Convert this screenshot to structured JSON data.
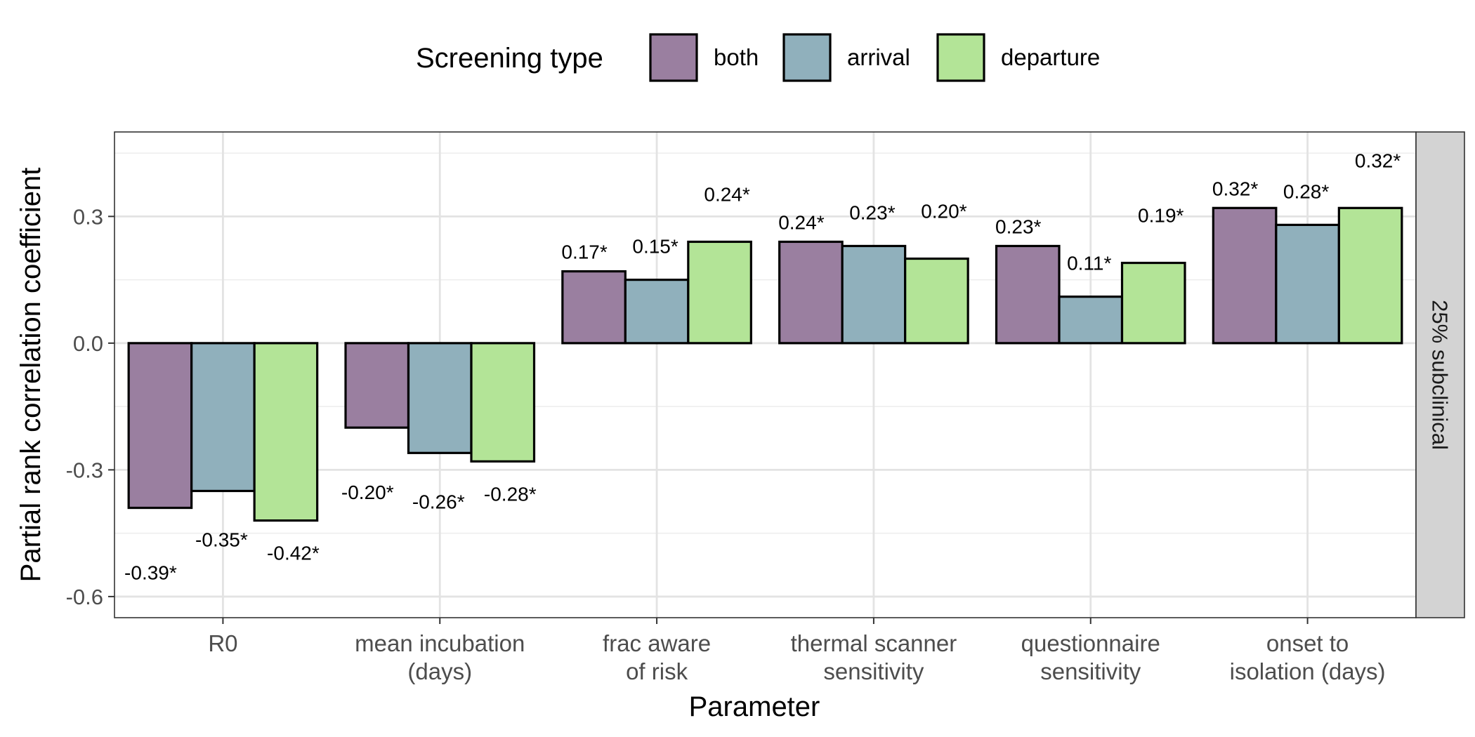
{
  "chart_data": {
    "type": "bar",
    "title": "",
    "xlabel": "Parameter",
    "ylabel": "Partial rank correlation coefficient",
    "ylim": [
      -0.65,
      0.5
    ],
    "yticks": [
      -0.6,
      -0.3,
      0.0,
      0.3
    ],
    "ytick_labels": [
      "-0.6",
      "-0.3",
      "0.0",
      "0.3"
    ],
    "grid": true,
    "legend": {
      "title": "Screening type",
      "position": "top",
      "entries": [
        "both",
        "arrival",
        "departure"
      ]
    },
    "facet_label": "25% subclinical",
    "categories": [
      [
        "R0"
      ],
      [
        "mean incubation",
        "(days)"
      ],
      [
        "frac aware",
        "of risk"
      ],
      [
        "thermal scanner",
        "sensitivity"
      ],
      [
        "questionnaire",
        "sensitivity"
      ],
      [
        "onset to",
        "isolation (days)"
      ]
    ],
    "series": [
      {
        "name": "both",
        "color": "#9a7fa0",
        "values": [
          -0.39,
          -0.2,
          0.17,
          0.24,
          0.23,
          0.32
        ],
        "labels": [
          "-0.39*",
          "-0.20*",
          "0.17*",
          "0.24*",
          "0.23*",
          "0.32*"
        ]
      },
      {
        "name": "arrival",
        "color": "#90b0bc",
        "values": [
          -0.35,
          -0.26,
          0.15,
          0.23,
          0.11,
          0.28
        ],
        "labels": [
          "-0.35*",
          "-0.26*",
          "0.15*",
          "0.23*",
          "0.11*",
          "0.28*"
        ]
      },
      {
        "name": "departure",
        "color": "#b3e497",
        "values": [
          -0.42,
          -0.28,
          0.24,
          0.2,
          0.19,
          0.32
        ],
        "labels": [
          "-0.42*",
          "-0.28*",
          "0.24*",
          "0.20*",
          "0.19*",
          "0.32*"
        ]
      }
    ]
  }
}
